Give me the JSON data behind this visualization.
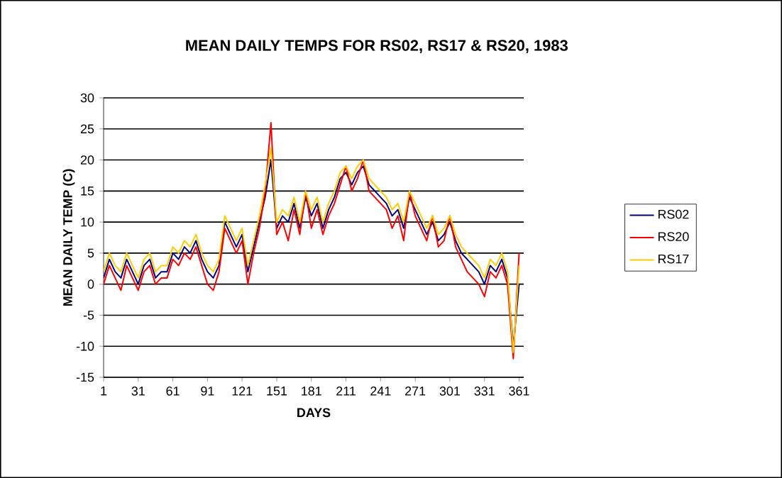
{
  "chart_data": {
    "type": "line",
    "title": "MEAN DAILY TEMPS FOR RS02, RS17 & RS20, 1983",
    "xlabel": "DAYS",
    "ylabel": "MEAN DAILY TEMP (C)",
    "x": [
      1,
      6,
      11,
      16,
      21,
      26,
      31,
      36,
      41,
      46,
      51,
      56,
      61,
      66,
      71,
      76,
      81,
      86,
      91,
      96,
      101,
      106,
      111,
      116,
      121,
      126,
      131,
      136,
      141,
      146,
      151,
      156,
      161,
      166,
      171,
      176,
      181,
      186,
      191,
      196,
      201,
      206,
      211,
      216,
      221,
      226,
      231,
      236,
      241,
      246,
      251,
      256,
      261,
      266,
      271,
      276,
      281,
      286,
      291,
      296,
      301,
      306,
      311,
      316,
      321,
      326,
      331,
      336,
      341,
      346,
      351,
      356,
      361
    ],
    "series": [
      {
        "name": "RS02",
        "color": "#000080",
        "values": [
          1,
          4,
          2,
          1,
          4,
          2,
          0,
          3,
          4,
          1,
          2,
          2,
          5,
          4,
          6,
          5,
          7,
          4,
          2,
          1,
          3,
          10,
          8,
          6,
          8,
          2,
          6,
          10,
          14,
          20,
          9,
          11,
          10,
          13,
          9,
          14,
          11,
          13,
          9,
          12,
          14,
          17,
          18,
          16,
          18,
          19,
          16,
          15,
          14,
          13,
          11,
          12,
          9,
          14,
          12,
          10,
          8,
          10,
          7,
          8,
          10,
          7,
          5,
          4,
          3,
          2,
          0,
          3,
          2,
          4,
          1,
          -10,
          0
        ]
      },
      {
        "name": "RS20",
        "color": "#ff0000",
        "values": [
          0,
          3,
          1,
          -1,
          3,
          1,
          -1,
          2,
          3,
          0,
          1,
          1,
          4,
          3,
          5,
          4,
          6,
          3,
          0,
          -1,
          2,
          9,
          7,
          5,
          7,
          0,
          5,
          9,
          15,
          26,
          8,
          10,
          7,
          12,
          8,
          15,
          9,
          12,
          8,
          11,
          13,
          16,
          19,
          15,
          17,
          20,
          15,
          14,
          13,
          12,
          9,
          11,
          7,
          15,
          11,
          9,
          7,
          11,
          6,
          7,
          11,
          6,
          4,
          2,
          1,
          0,
          -2,
          2,
          1,
          3,
          0,
          -12,
          5
        ]
      },
      {
        "name": "RS17",
        "color": "#ffcc00",
        "values": [
          2,
          5,
          3,
          2,
          5,
          3,
          1,
          4,
          5,
          2,
          3,
          3,
          6,
          5,
          7,
          6,
          8,
          5,
          3,
          2,
          4,
          11,
          9,
          7,
          9,
          3,
          7,
          11,
          16,
          22,
          10,
          12,
          11,
          14,
          10,
          15,
          12,
          14,
          10,
          13,
          15,
          18,
          19,
          17,
          19,
          20,
          17,
          16,
          15,
          14,
          12,
          13,
          10,
          15,
          13,
          11,
          9,
          11,
          8,
          9,
          11,
          8,
          6,
          5,
          4,
          3,
          1,
          4,
          3,
          5,
          2,
          -11,
          3
        ]
      }
    ],
    "xlim": [
      1,
      365
    ],
    "xticks": [
      1,
      31,
      61,
      91,
      121,
      151,
      181,
      211,
      241,
      271,
      301,
      331,
      361
    ],
    "ylim": [
      -15,
      30
    ],
    "yticks": [
      -15,
      -10,
      -5,
      0,
      5,
      10,
      15,
      20,
      25,
      30
    ],
    "grid": "y",
    "legend": "right",
    "marker": "none",
    "line_style": "solid"
  }
}
